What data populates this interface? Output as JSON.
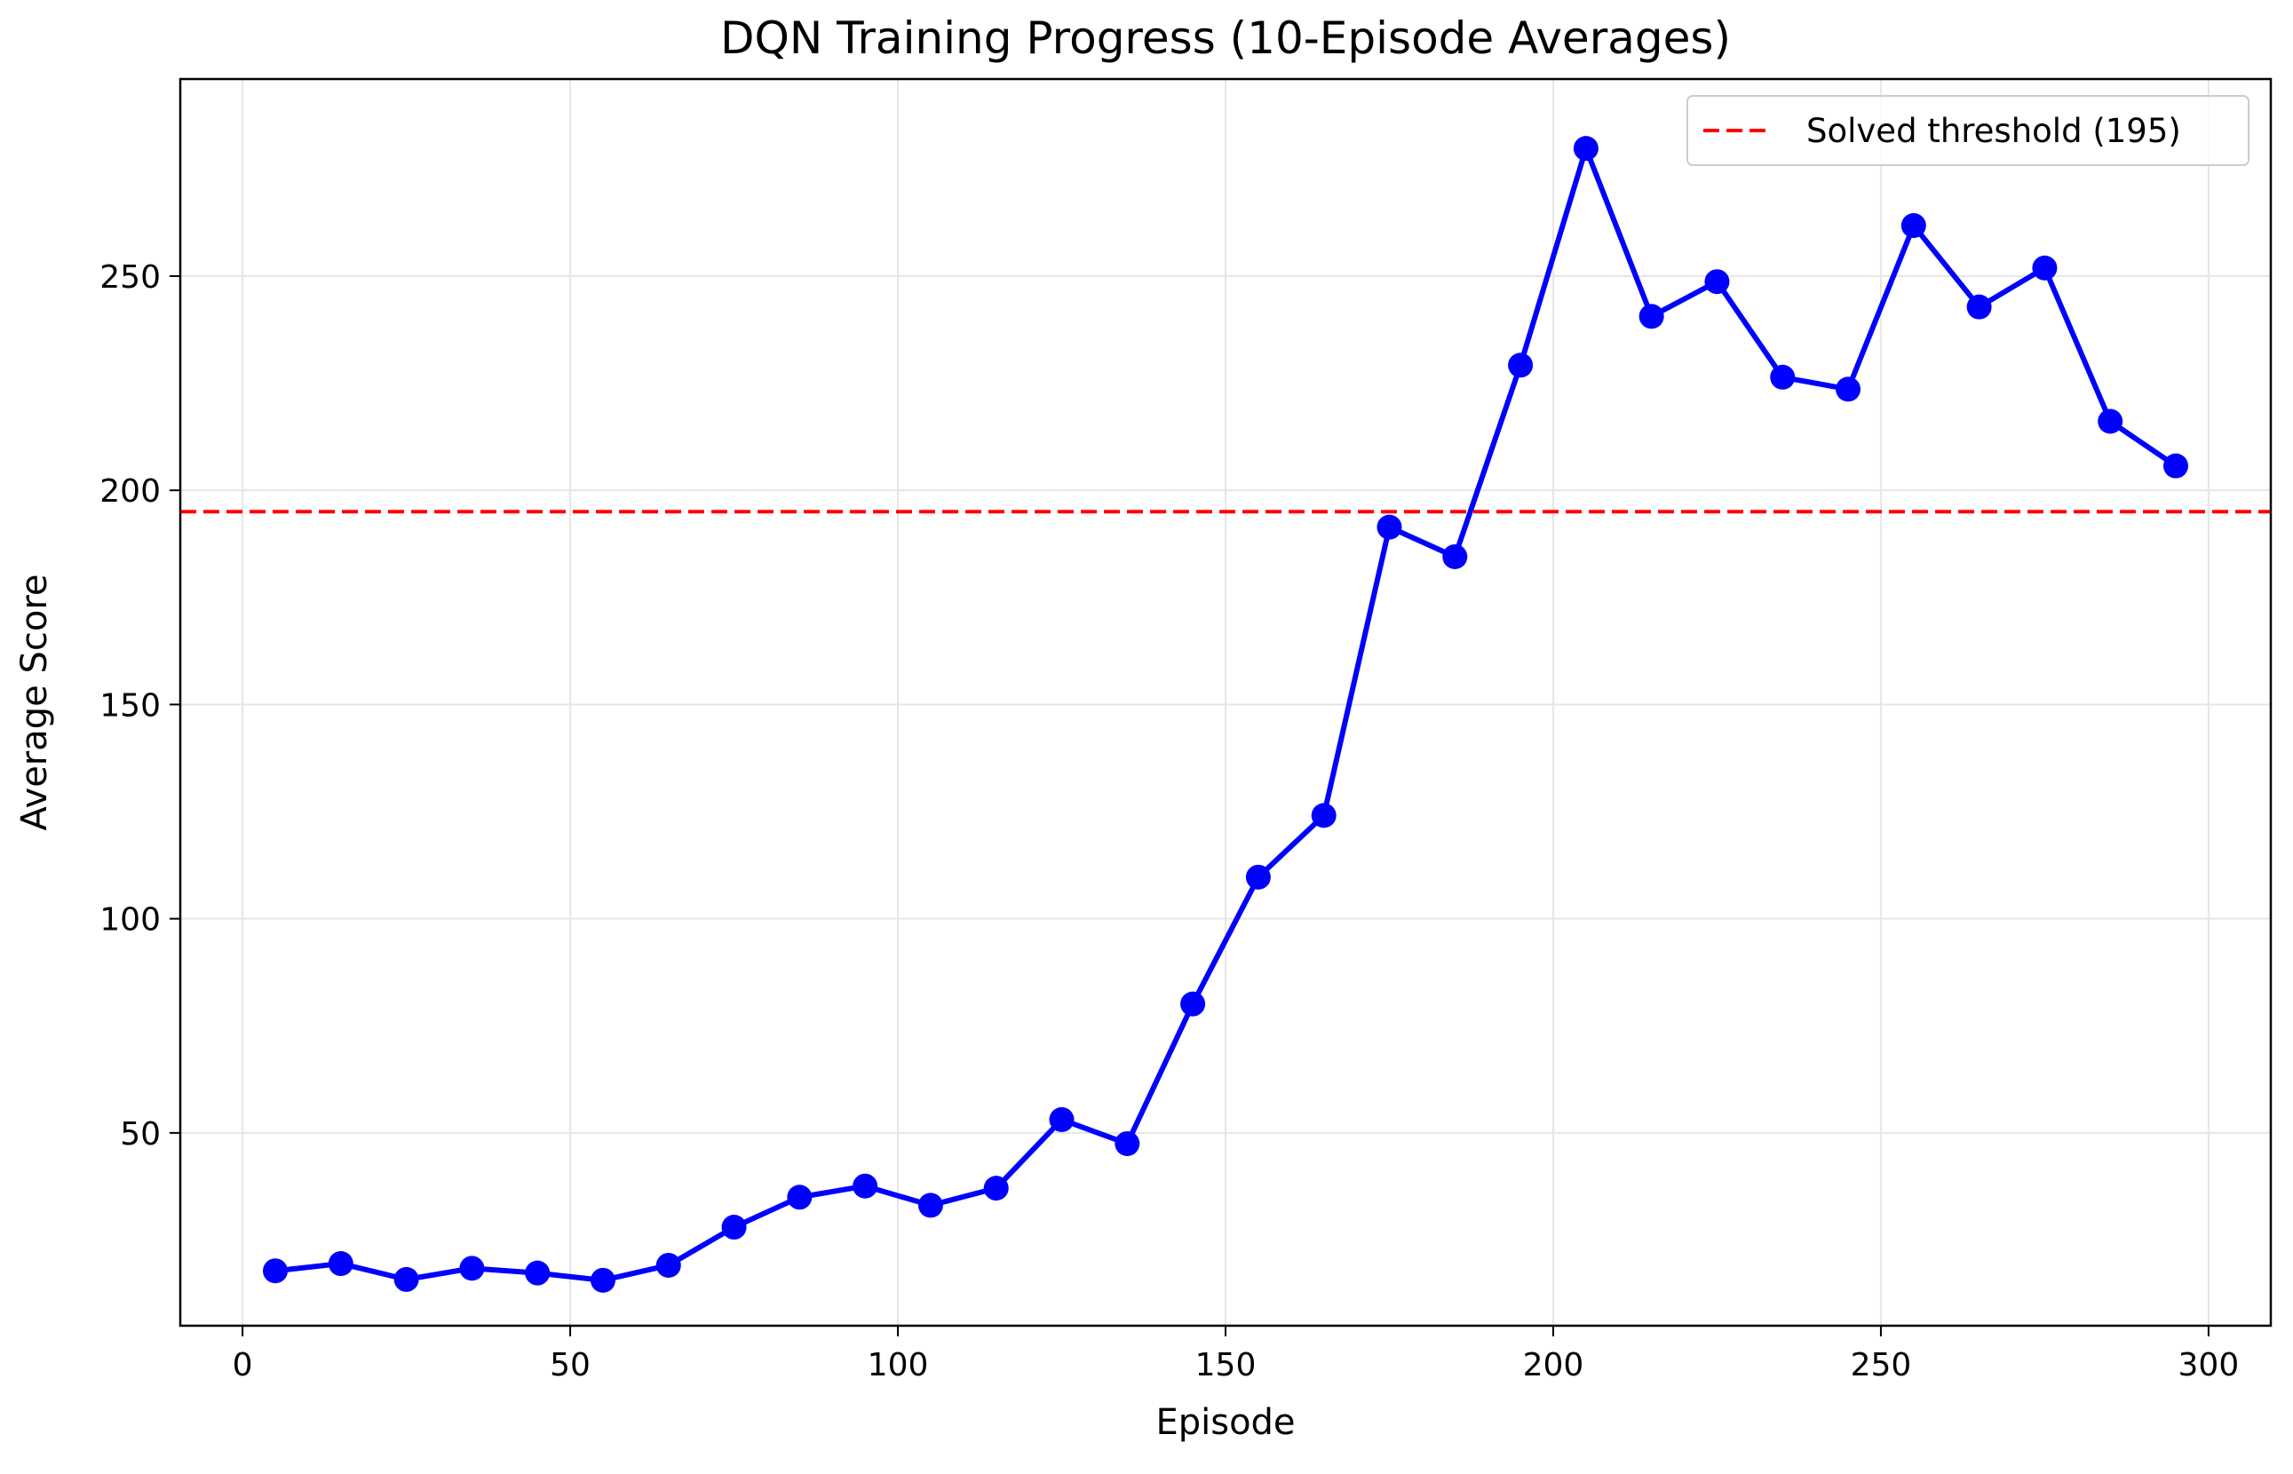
{
  "chart_data": {
    "type": "line",
    "title": "DQN Training Progress (10-Episode Averages)",
    "xlabel": "Episode",
    "ylabel": "Average Score",
    "xlim": [
      -9.5,
      309.5
    ],
    "ylim": [
      5,
      296
    ],
    "xticks": [
      0,
      50,
      100,
      150,
      200,
      250,
      300
    ],
    "yticks": [
      50,
      100,
      150,
      200,
      250
    ],
    "grid": true,
    "legend_position": "top-right",
    "series": [
      {
        "color": "#0000ff",
        "marker": "circle",
        "x": [
          5,
          15,
          25,
          35,
          45,
          55,
          65,
          75,
          85,
          95,
          105,
          115,
          125,
          135,
          145,
          155,
          165,
          175,
          185,
          195,
          205,
          215,
          225,
          235,
          245,
          255,
          265,
          275,
          285,
          295
        ],
        "y": [
          17.8,
          19.5,
          15.8,
          18.4,
          17.3,
          15.6,
          19.1,
          28,
          35,
          37.6,
          33.1,
          37.1,
          53.1,
          47.5,
          80.1,
          109.7,
          124.1,
          191.4,
          184.5,
          229.2,
          279.8,
          240.6,
          248.7,
          226.4,
          223.6,
          261.8,
          242.8,
          251.9,
          216.1,
          205.7
        ]
      }
    ],
    "reference_lines": [
      {
        "name": "Solved threshold (195)",
        "y": 195,
        "color": "#ff0000",
        "style": "dashed"
      }
    ]
  }
}
